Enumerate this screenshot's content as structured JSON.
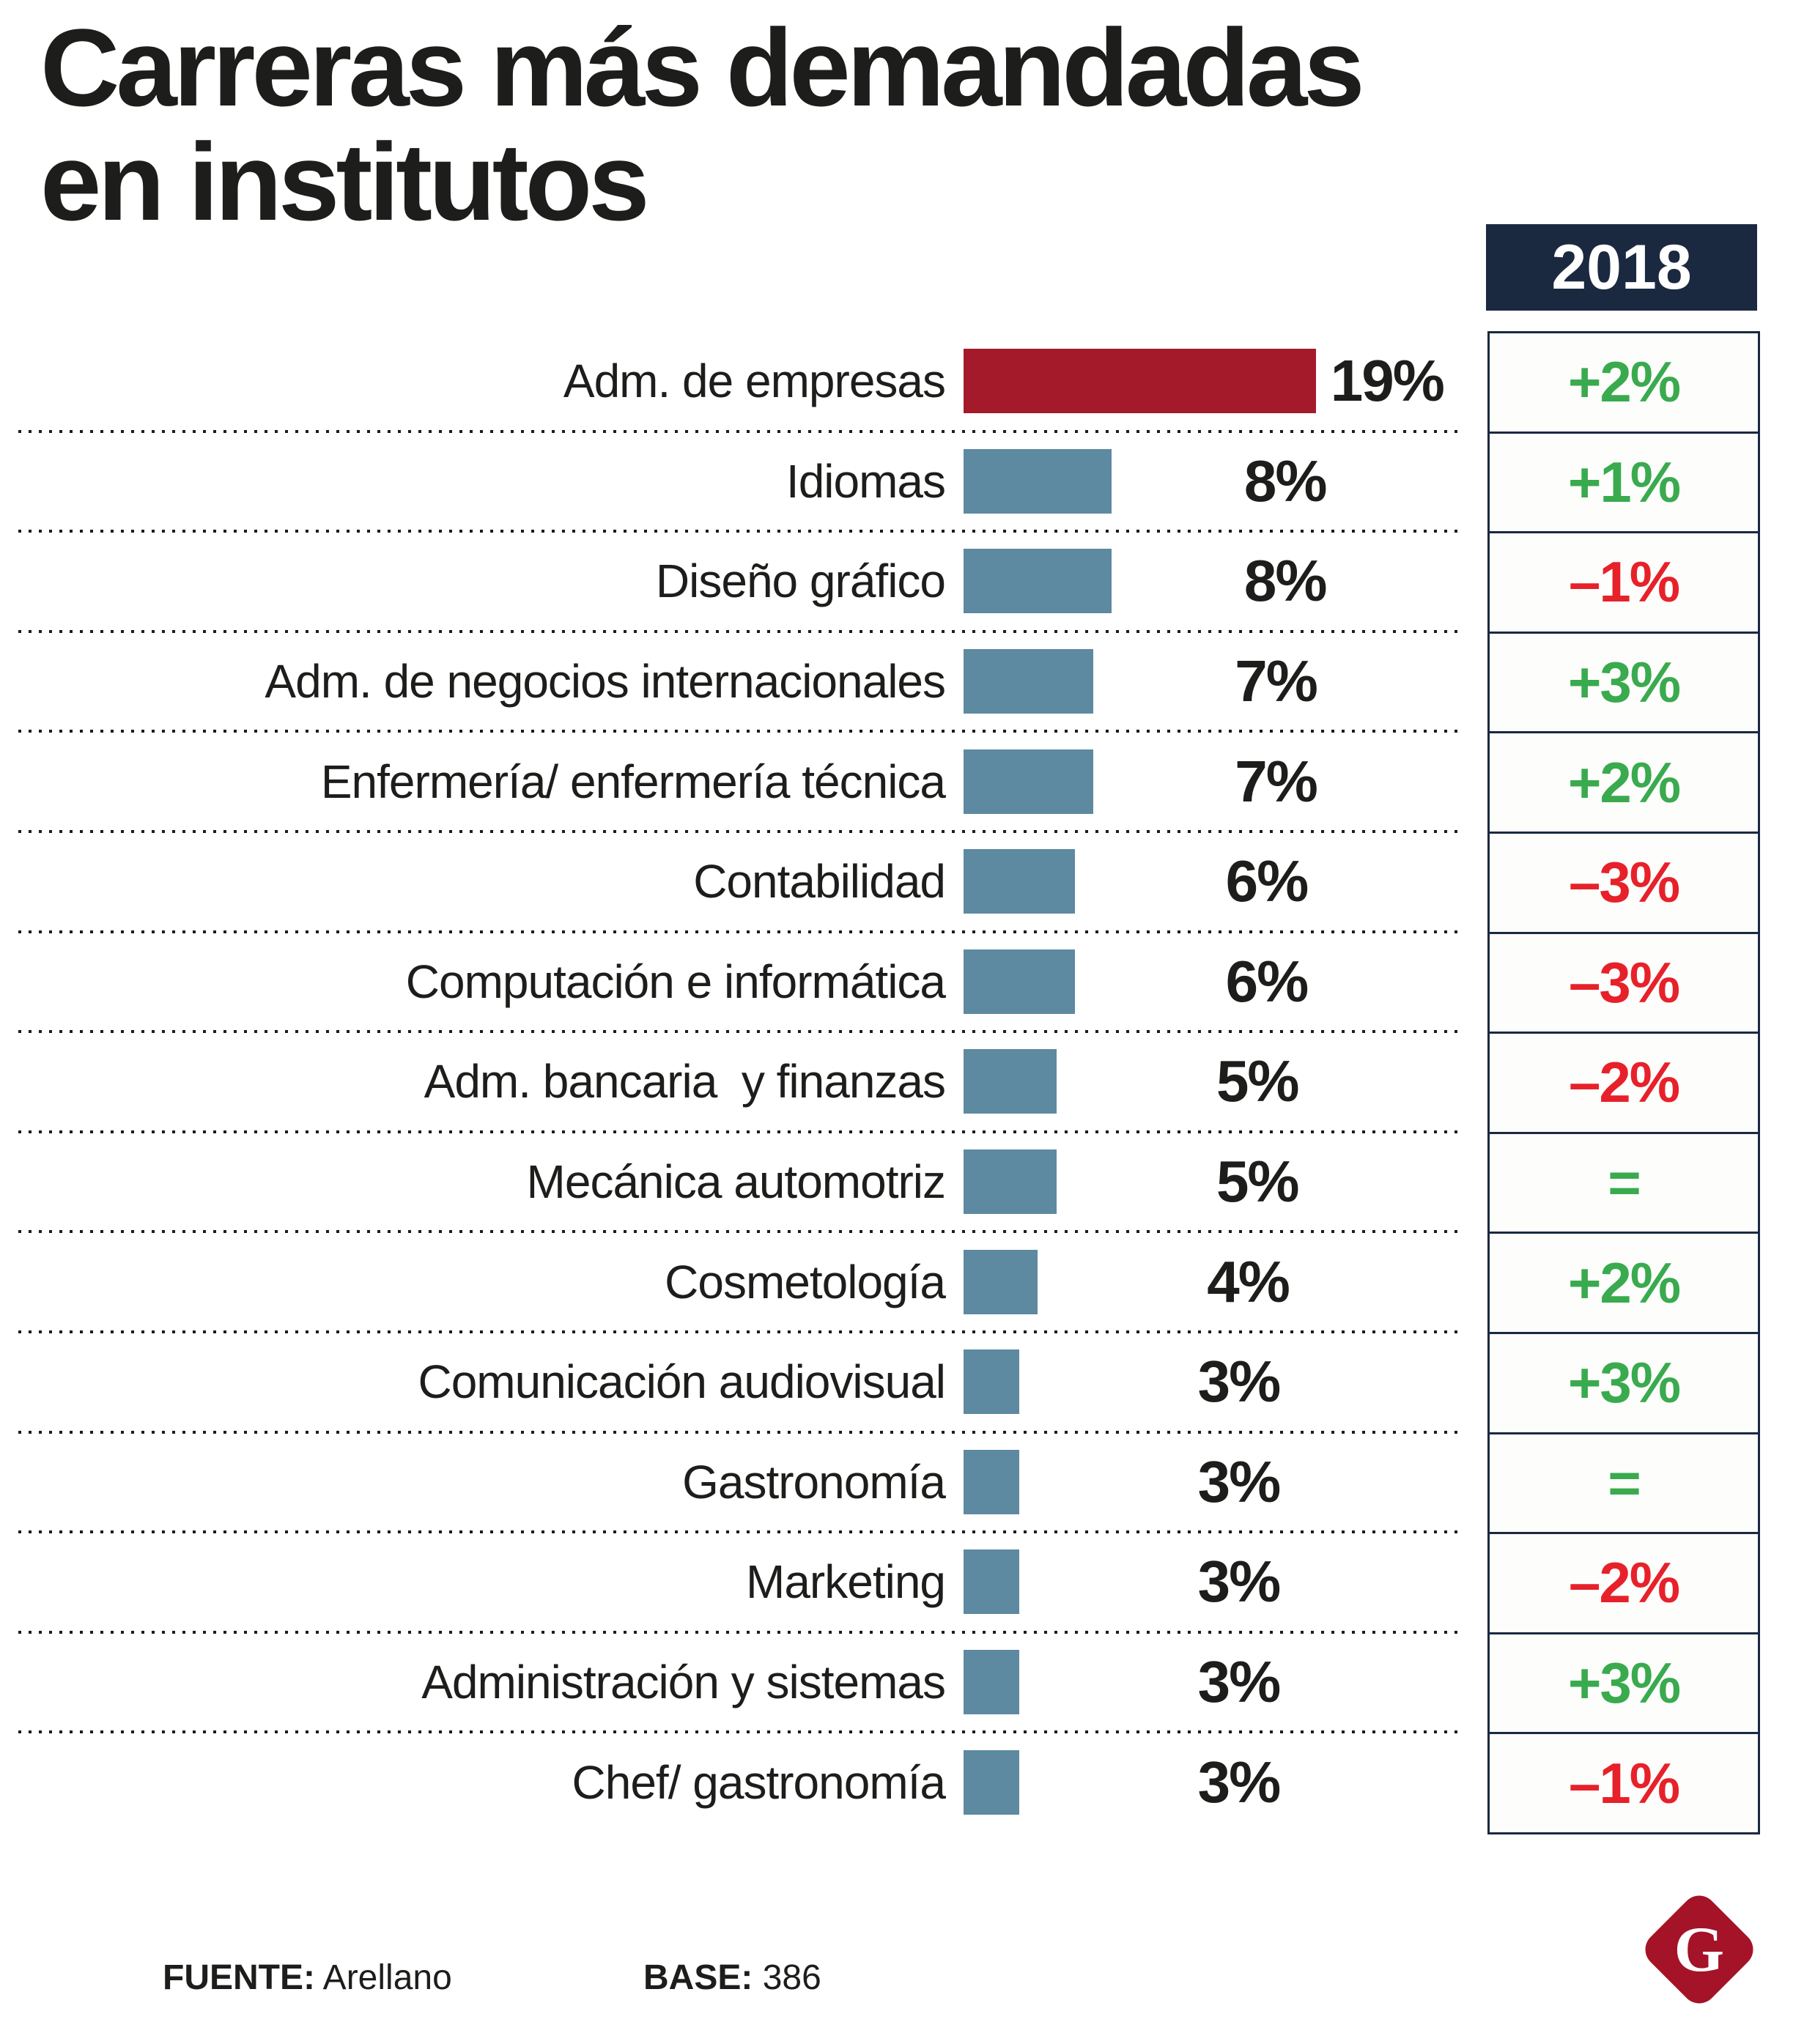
{
  "title": {
    "line1": "Carreras más demandadas",
    "line2": "en institutos"
  },
  "year_header": "2018",
  "chart_data": {
    "type": "bar",
    "title": "Carreras más demandadas en institutos",
    "orientation": "horizontal",
    "unit": "%",
    "xlim": [
      0,
      20
    ],
    "grid": false,
    "categories": [
      "Adm. de empresas",
      "Idiomas",
      "Diseño gráfico",
      "Adm. de negocios internacionales",
      "Enfermería/ enfermería técnica",
      "Contabilidad",
      "Computación e informática",
      "Adm. bancaria  y finanzas",
      "Mecánica automotriz",
      "Cosmetología",
      "Comunicación audiovisual",
      "Gastronomía",
      "Marketing",
      "Administración y sistemas",
      "Chef/ gastronomía"
    ],
    "values": [
      19,
      8,
      8,
      7,
      7,
      6,
      6,
      5,
      5,
      4,
      3,
      3,
      3,
      3,
      3
    ],
    "value_labels": [
      "19%",
      "8%",
      "8%",
      "7%",
      "7%",
      "6%",
      "6%",
      "5%",
      "5%",
      "4%",
      "3%",
      "3%",
      "3%",
      "3%",
      "3%"
    ],
    "change_column_label": "2018",
    "change_2018": [
      "+2%",
      "+1%",
      "–1%",
      "+3%",
      "+2%",
      "–3%",
      "–3%",
      "–2%",
      "=",
      "+2%",
      "+3%",
      "=",
      "–2%",
      "+3%",
      "–1%"
    ],
    "change_direction": [
      "up",
      "up",
      "down",
      "up",
      "up",
      "down",
      "down",
      "down",
      "equal",
      "up",
      "up",
      "equal",
      "down",
      "up",
      "down"
    ]
  },
  "footer": {
    "source_label": "FUENTE:",
    "source_value": "Arellano",
    "base_label": "BASE:",
    "base_value": "386",
    "logo_letter": "G"
  },
  "colors": {
    "navy": "#1a2940",
    "green": "#3aaa4e",
    "red": "#e7212a",
    "bar_blue": "#5d89a1",
    "bar_red": "#a51a2b",
    "logo_red": "#a41328",
    "text": "#1d1d1b"
  }
}
